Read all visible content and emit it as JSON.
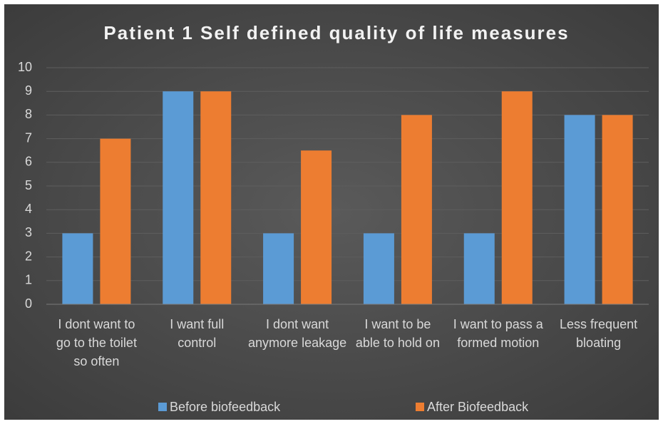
{
  "chart_data": {
    "type": "bar",
    "title": "Patient 1 Self defined quality of life measures",
    "categories": [
      "I dont want to go to the toilet so often",
      "I want full control",
      "I dont want anymore leakage",
      "I want to be able to hold on",
      "I want to pass a formed motion",
      "Less frequent bloating"
    ],
    "series": [
      {
        "name": "Before biofeedback",
        "color": "#5b9bd5",
        "values": [
          3,
          9,
          3,
          3,
          3,
          8
        ]
      },
      {
        "name": "After Biofeedback",
        "color": "#ed7d31",
        "values": [
          7,
          9,
          6.5,
          8,
          9,
          8
        ]
      }
    ],
    "ylim": [
      0,
      10
    ],
    "yticks": [
      0,
      1,
      2,
      3,
      4,
      5,
      6,
      7,
      8,
      9,
      10
    ],
    "grid": true,
    "legend": "bottom"
  }
}
